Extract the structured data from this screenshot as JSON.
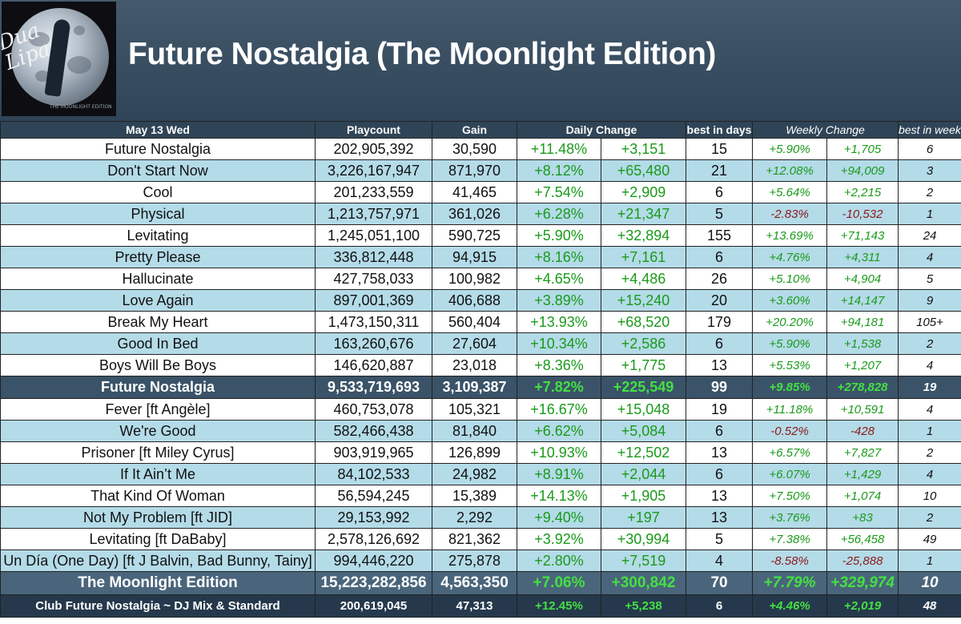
{
  "title": "Future Nostalgia (The Moonlight Edition)",
  "cover": {
    "script_text": "Dua Lipa",
    "caption": "THE MOONLIGHT EDITION"
  },
  "colors": {
    "header_bg": "#2f4457",
    "row_blue": "#b4dbe8",
    "positive": "#1a9a1a",
    "negative": "#8a1a1a"
  },
  "table": {
    "headers": {
      "date": "May 13 Wed",
      "playcount": "Playcount",
      "gain": "Gain",
      "daily_change": "Daily Change",
      "best_days": "best in days",
      "weekly_change": "Weekly Change",
      "best_weeks": "best in weeks"
    },
    "rows": [
      [
        "Future Nostalgia",
        "202,905,392",
        "30,590",
        "+11.48%",
        "+3,151",
        "15",
        "+5.90%",
        "+1,705",
        "6"
      ],
      [
        "Don't Start Now",
        "3,226,167,947",
        "871,970",
        "+8.12%",
        "+65,480",
        "21",
        "+12.08%",
        "+94,009",
        "3"
      ],
      [
        "Cool",
        "201,233,559",
        "41,465",
        "+7.54%",
        "+2,909",
        "6",
        "+5.64%",
        "+2,215",
        "2"
      ],
      [
        "Physical",
        "1,213,757,971",
        "361,026",
        "+6.28%",
        "+21,347",
        "5",
        "-2.83%",
        "-10,532",
        "1"
      ],
      [
        "Levitating",
        "1,245,051,100",
        "590,725",
        "+5.90%",
        "+32,894",
        "155",
        "+13.69%",
        "+71,143",
        "24"
      ],
      [
        "Pretty Please",
        "336,812,448",
        "94,915",
        "+8.16%",
        "+7,161",
        "6",
        "+4.76%",
        "+4,311",
        "4"
      ],
      [
        "Hallucinate",
        "427,758,033",
        "100,982",
        "+4.65%",
        "+4,486",
        "26",
        "+5.10%",
        "+4,904",
        "5"
      ],
      [
        "Love Again",
        "897,001,369",
        "406,688",
        "+3.89%",
        "+15,240",
        "20",
        "+3.60%",
        "+14,147",
        "9"
      ],
      [
        "Break My Heart",
        "1,473,150,311",
        "560,404",
        "+13.93%",
        "+68,520",
        "179",
        "+20.20%",
        "+94,181",
        "105+"
      ],
      [
        "Good In Bed",
        "163,260,676",
        "27,604",
        "+10.34%",
        "+2,586",
        "6",
        "+5.90%",
        "+1,538",
        "2"
      ],
      [
        "Boys Will Be Boys",
        "146,620,887",
        "23,018",
        "+8.36%",
        "+1,775",
        "13",
        "+5.53%",
        "+1,207",
        "4"
      ],
      [
        "Future Nostalgia",
        "9,533,719,693",
        "3,109,387",
        "+7.82%",
        "+225,549",
        "99",
        "+9.85%",
        "+278,828",
        "19"
      ],
      [
        "Fever [ft Angèle]",
        "460,753,078",
        "105,321",
        "+16.67%",
        "+15,048",
        "19",
        "+11.18%",
        "+10,591",
        "4"
      ],
      [
        "We're Good",
        "582,466,438",
        "81,840",
        "+6.62%",
        "+5,084",
        "6",
        "-0.52%",
        "-428",
        "1"
      ],
      [
        "Prisoner [ft Miley Cyrus]",
        "903,919,965",
        "126,899",
        "+10.93%",
        "+12,502",
        "13",
        "+6.57%",
        "+7,827",
        "2"
      ],
      [
        "If It Ain’t Me",
        "84,102,533",
        "24,982",
        "+8.91%",
        "+2,044",
        "6",
        "+6.07%",
        "+1,429",
        "4"
      ],
      [
        "That Kind Of Woman",
        "56,594,245",
        "15,389",
        "+14.13%",
        "+1,905",
        "13",
        "+7.50%",
        "+1,074",
        "10"
      ],
      [
        "Not My Problem [ft JID]",
        "29,153,992",
        "2,292",
        "+9.40%",
        "+197",
        "13",
        "+3.76%",
        "+83",
        "2"
      ],
      [
        "Levitating [ft DaBaby]",
        "2,578,126,692",
        "821,362",
        "+3.92%",
        "+30,994",
        "5",
        "+7.38%",
        "+56,458",
        "49"
      ],
      [
        "Un Día (One Day) [ft J Balvin, Bad Bunny, Tainy]",
        "994,446,220",
        "275,878",
        "+2.80%",
        "+7,519",
        "4",
        "-8.58%",
        "-25,888",
        "1"
      ],
      [
        "The Moonlight Edition",
        "15,223,282,856",
        "4,563,350",
        "+7.06%",
        "+300,842",
        "70",
        "+7.79%",
        "+329,974",
        "10"
      ],
      [
        "Club Future Nostalgia ~ DJ Mix & Standard",
        "200,619,045",
        "47,313",
        "+12.45%",
        "+5,238",
        "6",
        "+4.46%",
        "+2,019",
        "48"
      ]
    ]
  }
}
